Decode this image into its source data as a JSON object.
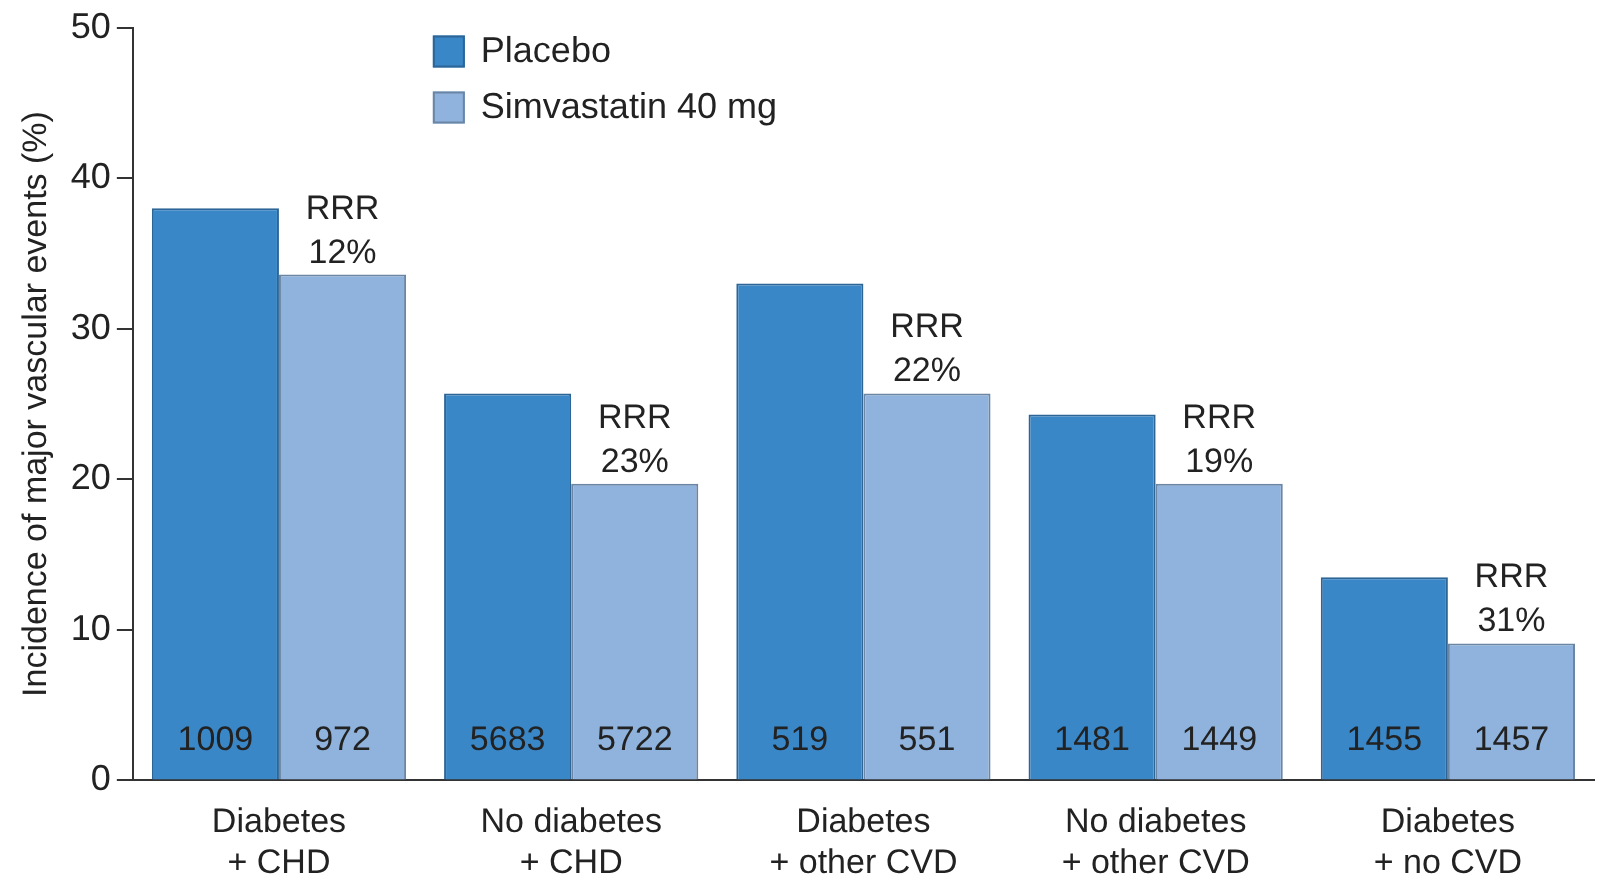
{
  "chart_data": {
    "type": "bar",
    "ylabel": "Incidence of major vascular events (%)",
    "categories": [
      "Diabetes\n+ CHD",
      "No diabetes\n+ CHD",
      "Diabetes\n+ other CVD",
      "No diabetes\n+ other CVD",
      "Diabetes\n+ no CVD"
    ],
    "series": [
      {
        "name": "Placebo",
        "color": "#3a87c8",
        "values": [
          38,
          25.7,
          33,
          24.3,
          13.5
        ]
      },
      {
        "name": "Simvastatin 40 mg",
        "color": "#8fb3dc",
        "values": [
          33.6,
          19.7,
          25.7,
          19.7,
          9.1
        ]
      }
    ],
    "annotations": [
      {
        "text": "RRR\n12%",
        "x": "Diabetes\n+ CHD",
        "y": 33.6
      },
      {
        "text": "RRR\n23%",
        "x": "No diabetes\n+ CHD",
        "y": 19.7
      },
      {
        "text": "RRR\n22%",
        "x": "Diabetes\n+ other CVD",
        "y": 25.7
      },
      {
        "text": "RRR\n19%",
        "x": "No diabetes\n+ other CVD",
        "y": 19.7
      },
      {
        "text": "RRR\n31%",
        "x": "Diabetes\n+ no CVD",
        "y": 9.1
      },
      {
        "text": "1009",
        "x": "Diabetes\n+ CHD",
        "y": 0
      },
      {
        "text": "972",
        "x": "Diabetes\n+ CHD",
        "y": 0
      },
      {
        "text": "5683",
        "x": "No diabetes\n+ CHD",
        "y": 0
      },
      {
        "text": "5722",
        "x": "No diabetes\n+ CHD",
        "y": 0
      },
      {
        "text": "519",
        "x": "Diabetes\n+ other CVD",
        "y": 0
      },
      {
        "text": "551",
        "x": "Diabetes\n+ other CVD",
        "y": 0
      },
      {
        "text": "1481",
        "x": "No diabetes\n+ other CVD",
        "y": 0
      },
      {
        "text": "1449",
        "x": "No diabetes\n+ other CVD",
        "y": 0
      },
      {
        "text": "1455",
        "x": "Diabetes\n+ no CVD",
        "y": 0
      },
      {
        "text": "1457",
        "x": "Diabetes\n+ no CVD",
        "y": 0
      }
    ],
    "ylim": [
      0,
      50
    ],
    "yticks": [
      0,
      10,
      20,
      30,
      40,
      50
    ],
    "grid": false,
    "legend": "top left"
  }
}
